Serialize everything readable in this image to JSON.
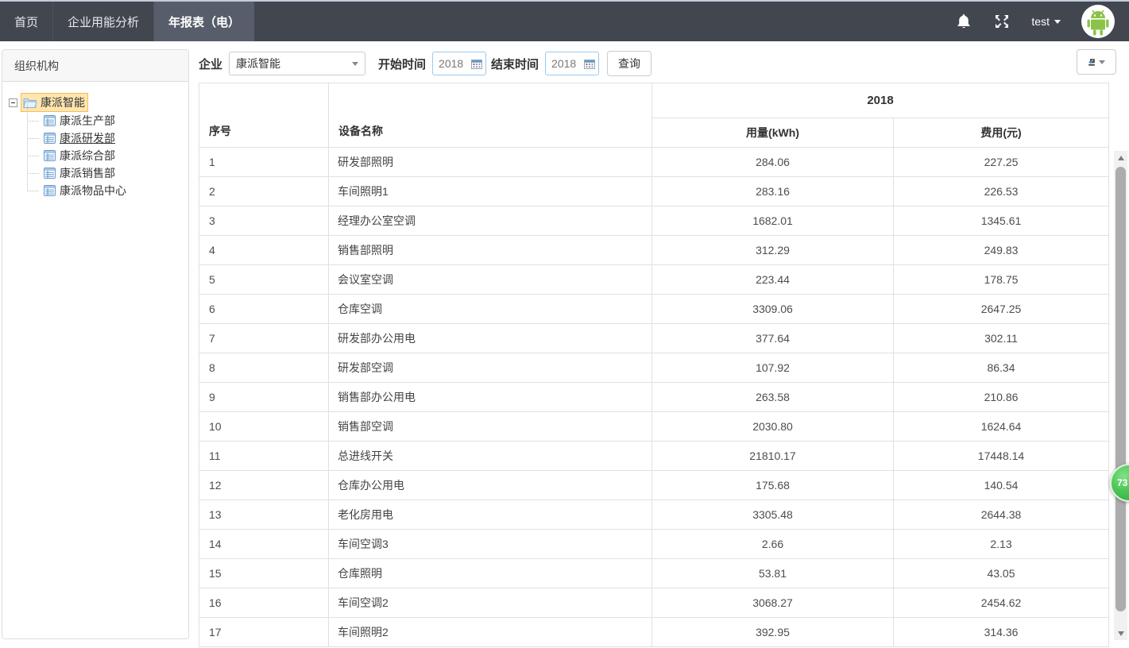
{
  "nav": {
    "tabs": [
      {
        "label": "首页",
        "active": false
      },
      {
        "label": "企业用能分析",
        "active": false
      },
      {
        "label": "年报表（电）",
        "active": true
      }
    ],
    "user_label": "test"
  },
  "sidebar": {
    "title": "组织机构",
    "root_label": "康派智能",
    "children": [
      {
        "label": "康派生产部",
        "selected": false
      },
      {
        "label": "康派研发部",
        "selected": true
      },
      {
        "label": "康派综合部",
        "selected": false
      },
      {
        "label": "康派销售部",
        "selected": false
      },
      {
        "label": "康派物品中心",
        "selected": false
      }
    ]
  },
  "toolbar": {
    "enterprise_label": "企业",
    "enterprise_value": "康派智能",
    "start_label": "开始时间",
    "start_value": "2018",
    "end_label": "结束时间",
    "end_value": "2018",
    "query_label": "查询"
  },
  "table": {
    "year_header": "2018",
    "col_no": "序号",
    "col_device": "设备名称",
    "col_usage": "用量(kWh)",
    "col_cost": "费用(元)",
    "rows": [
      {
        "no": "1",
        "device": "研发部照明",
        "usage": "284.06",
        "cost": "227.25"
      },
      {
        "no": "2",
        "device": "车间照明1",
        "usage": "283.16",
        "cost": "226.53"
      },
      {
        "no": "3",
        "device": "经理办公室空调",
        "usage": "1682.01",
        "cost": "1345.61"
      },
      {
        "no": "4",
        "device": "销售部照明",
        "usage": "312.29",
        "cost": "249.83"
      },
      {
        "no": "5",
        "device": "会议室空调",
        "usage": "223.44",
        "cost": "178.75"
      },
      {
        "no": "6",
        "device": "仓库空调",
        "usage": "3309.06",
        "cost": "2647.25"
      },
      {
        "no": "7",
        "device": "研发部办公用电",
        "usage": "377.64",
        "cost": "302.11"
      },
      {
        "no": "8",
        "device": "研发部空调",
        "usage": "107.92",
        "cost": "86.34"
      },
      {
        "no": "9",
        "device": "销售部办公用电",
        "usage": "263.58",
        "cost": "210.86"
      },
      {
        "no": "10",
        "device": "销售部空调",
        "usage": "2030.80",
        "cost": "1624.64"
      },
      {
        "no": "11",
        "device": "总进线开关",
        "usage": "21810.17",
        "cost": "17448.14"
      },
      {
        "no": "12",
        "device": "仓库办公用电",
        "usage": "175.68",
        "cost": "140.54"
      },
      {
        "no": "13",
        "device": "老化房用电",
        "usage": "3305.48",
        "cost": "2644.38"
      },
      {
        "no": "14",
        "device": "车间空调3",
        "usage": "2.66",
        "cost": "2.13"
      },
      {
        "no": "15",
        "device": "仓库照明",
        "usage": "53.81",
        "cost": "43.05"
      },
      {
        "no": "16",
        "device": "车间空调2",
        "usage": "3068.27",
        "cost": "2454.62"
      },
      {
        "no": "17",
        "device": "车间照明2",
        "usage": "392.95",
        "cost": "314.36"
      }
    ]
  },
  "float_badge": {
    "text": "73"
  },
  "icons": {
    "bell": "bell-icon",
    "fullscreen": "fullscreen-icon",
    "avatar": "android-avatar",
    "export": "export-icon",
    "calendar": "calendar-icon",
    "folder": "folder-icon",
    "document": "document-icon"
  },
  "colors": {
    "nav_bg": "#42464f",
    "nav_active_bg": "#575d6a",
    "selected_node_bg": "#FFE6B0",
    "selected_node_border": "#FFB951",
    "badge_green": "#4cc655",
    "date_input_border": "#9ac9ee",
    "table_border": "#e0e0e0",
    "android_green": "#8BC34A"
  }
}
